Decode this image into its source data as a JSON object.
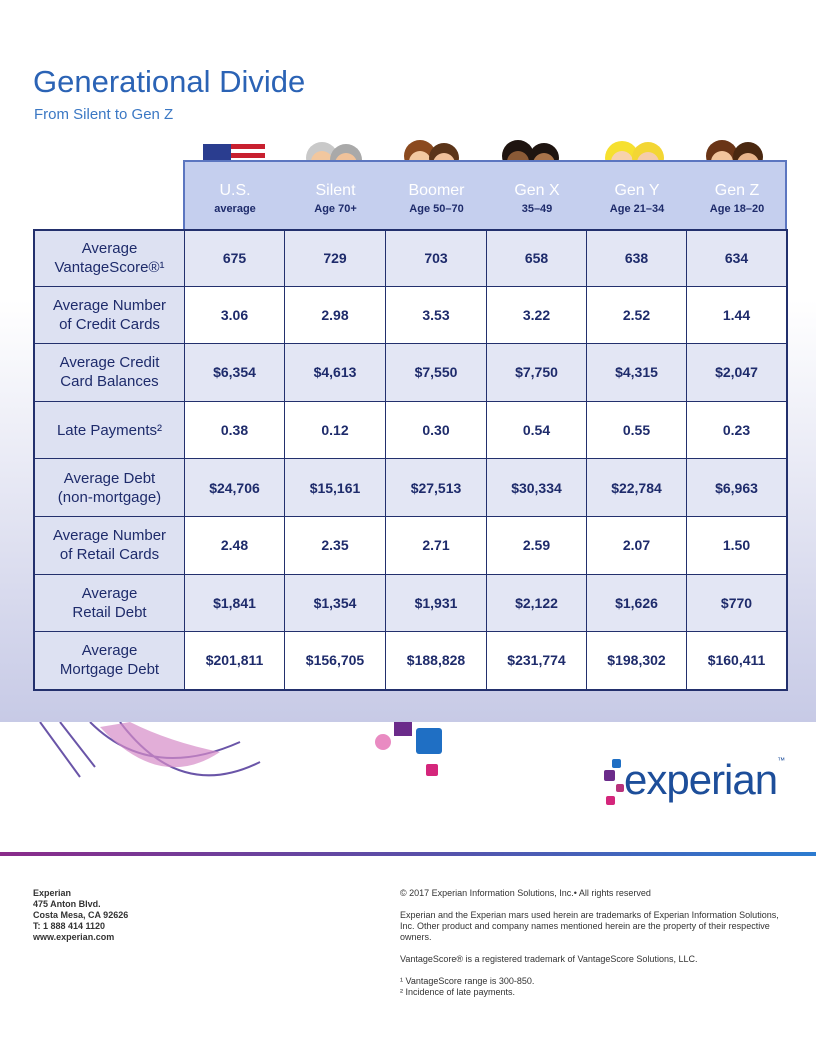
{
  "header": {
    "title": "Generational Divide",
    "subtitle": "From Silent to Gen Z"
  },
  "table": {
    "columns": [
      {
        "name": "U.S.",
        "sub": "average"
      },
      {
        "name": "Silent",
        "sub": "Age 70+"
      },
      {
        "name": "Boomer",
        "sub": "Age 50–70"
      },
      {
        "name": "Gen X",
        "sub": "35–49"
      },
      {
        "name": "Gen Y",
        "sub": "Age 21–34"
      },
      {
        "name": "Gen Z",
        "sub": "Age 18–20"
      }
    ],
    "rows": [
      {
        "label": [
          "Average",
          "VantageScore®¹"
        ],
        "cells": [
          "675",
          "729",
          "703",
          "658",
          "638",
          "634"
        ]
      },
      {
        "label": [
          "Average Number",
          "of Credit Cards"
        ],
        "cells": [
          "3.06",
          "2.98",
          "3.53",
          "3.22",
          "2.52",
          "1.44"
        ]
      },
      {
        "label": [
          "Average Credit",
          "Card Balances"
        ],
        "cells": [
          "$6,354",
          "$4,613",
          "$7,550",
          "$7,750",
          "$4,315",
          "$2,047"
        ]
      },
      {
        "label": [
          "Late Payments²"
        ],
        "cells": [
          "0.38",
          "0.12",
          "0.30",
          "0.54",
          "0.55",
          "0.23"
        ]
      },
      {
        "label": [
          "Average Debt",
          "(non-mortgage)"
        ],
        "cells": [
          "$24,706",
          "$15,161",
          "$27,513",
          "$30,334",
          "$22,784",
          "$6,963"
        ]
      },
      {
        "label": [
          "Average Number",
          "of Retail Cards"
        ],
        "cells": [
          "2.48",
          "2.35",
          "2.71",
          "2.59",
          "2.07",
          "1.50"
        ]
      },
      {
        "label": [
          "Average",
          "Retail Debt"
        ],
        "cells": [
          "$1,841",
          "$1,354",
          "$1,931",
          "$2,122",
          "$1,626",
          "$770"
        ]
      },
      {
        "label": [
          "Average",
          "Mortgage Debt"
        ],
        "cells": [
          "$201,811",
          "$156,705",
          "$188,828",
          "$231,774",
          "$198,302",
          "$160,411"
        ]
      }
    ]
  },
  "logo": {
    "text": "experian",
    "tm": "™"
  },
  "footer": {
    "address": [
      "Experian",
      "475 Anton Blvd.",
      "Costa Mesa, CA 92626",
      "T: 1 888 414 1120",
      "www.experian.com"
    ],
    "copyright": "© 2017 Experian Information Solutions, Inc.• All rights reserved",
    "trademark": "Experian and the Experian mars used herein are trademarks of Experian Information Solutions, Inc. Other product and company names mentioned herein are the property of their respective owners.",
    "vantage": "VantageScore® is a registered trademark of VantageScore Solutions, LLC.",
    "notes": [
      "¹ VantageScore range is 300-850.",
      "² Incidence of late payments."
    ]
  }
}
